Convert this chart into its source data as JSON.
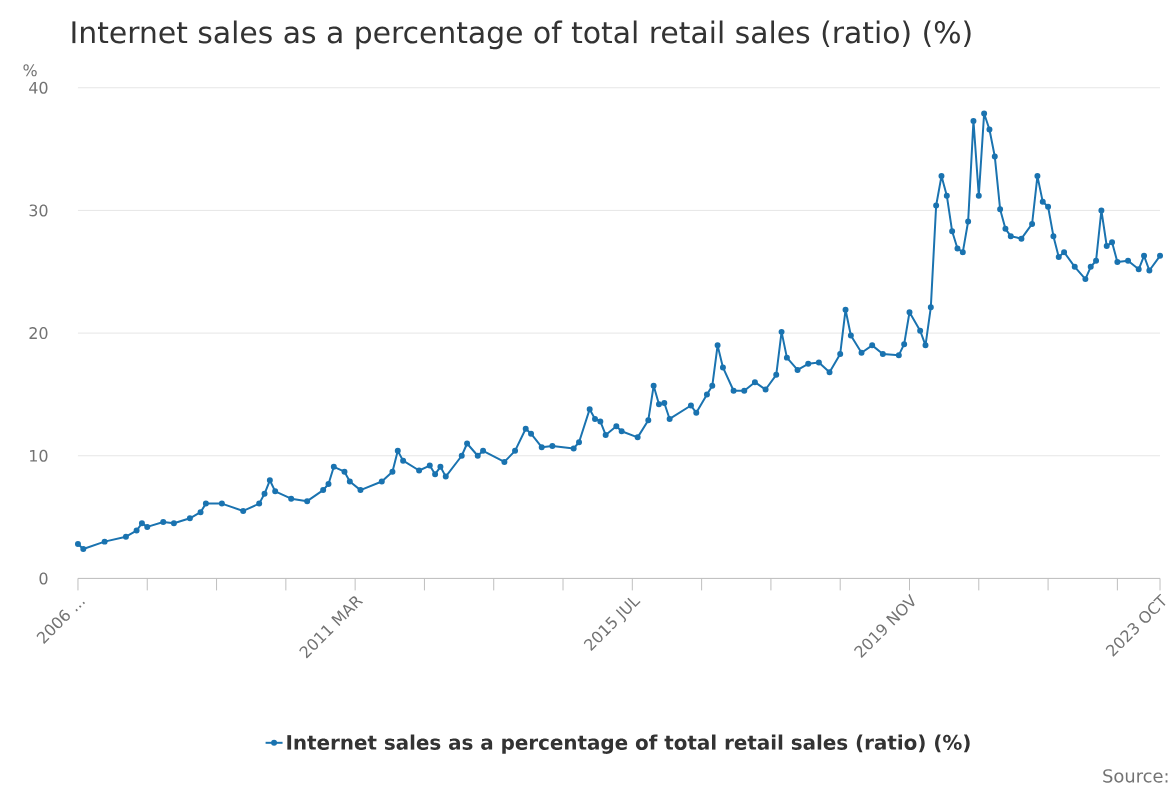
{
  "chart_data": {
    "type": "line",
    "title": "Internet sales as a percentage of total retail sales (ratio) (%)",
    "ylabel": "%",
    "xlim": [
      "2006-11",
      "2023-10"
    ],
    "ylim": [
      0,
      40
    ],
    "yticks": [
      0,
      10,
      20,
      30,
      40
    ],
    "xticks": [
      {
        "value": "2006-11",
        "label": "2006 ..."
      },
      {
        "value": "2007-12",
        "label": null
      },
      {
        "value": "2009-01",
        "label": null
      },
      {
        "value": "2010-02",
        "label": null
      },
      {
        "value": "2011-03",
        "label": "2011 MAR"
      },
      {
        "value": "2012-04",
        "label": null
      },
      {
        "value": "2013-05",
        "label": null
      },
      {
        "value": "2014-06",
        "label": null
      },
      {
        "value": "2015-07",
        "label": "2015 JUL"
      },
      {
        "value": "2016-08",
        "label": null
      },
      {
        "value": "2017-09",
        "label": null
      },
      {
        "value": "2018-10",
        "label": null
      },
      {
        "value": "2019-11",
        "label": "2019 NOV"
      },
      {
        "value": "2020-12",
        "label": null
      },
      {
        "value": "2022-01",
        "label": null
      },
      {
        "value": "2023-02",
        "label": null
      },
      {
        "value": "2023-10",
        "label": "2023 OCT"
      }
    ],
    "grid": "y",
    "legend": "bottom",
    "marker": "circle",
    "line_style": "solid",
    "annotations": [
      "Source:"
    ],
    "x": [
      "2006-11",
      "2006-12",
      "2007-04",
      "2007-08",
      "2007-10",
      "2007-11",
      "2007-12",
      "2008-03",
      "2008-05",
      "2008-08",
      "2008-10",
      "2008-11",
      "2009-02",
      "2009-06",
      "2009-09",
      "2009-10",
      "2009-11",
      "2009-12",
      "2010-03",
      "2010-06",
      "2010-09",
      "2010-10",
      "2010-11",
      "2011-01",
      "2011-02",
      "2011-04",
      "2011-08",
      "2011-10",
      "2011-11",
      "2011-12",
      "2012-03",
      "2012-05",
      "2012-06",
      "2012-07",
      "2012-08",
      "2012-11",
      "2012-12",
      "2013-02",
      "2013-03",
      "2013-07",
      "2013-09",
      "2013-11",
      "2013-12",
      "2014-02",
      "2014-04",
      "2014-08",
      "2014-09",
      "2014-11",
      "2014-12",
      "2015-01",
      "2015-02",
      "2015-04",
      "2015-05",
      "2015-08",
      "2015-10",
      "2015-11",
      "2015-12",
      "2016-01",
      "2016-02",
      "2016-06",
      "2016-07",
      "2016-09",
      "2016-10",
      "2016-11",
      "2016-12",
      "2017-02",
      "2017-04",
      "2017-06",
      "2017-08",
      "2017-10",
      "2017-11",
      "2017-12",
      "2018-02",
      "2018-04",
      "2018-06",
      "2018-08",
      "2018-10",
      "2018-11",
      "2018-12",
      "2019-02",
      "2019-04",
      "2019-06",
      "2019-09",
      "2019-10",
      "2019-11",
      "2020-01",
      "2020-02",
      "2020-03",
      "2020-04",
      "2020-05",
      "2020-06",
      "2020-07",
      "2020-08",
      "2020-09",
      "2020-10",
      "2020-11",
      "2020-12",
      "2021-01",
      "2021-02",
      "2021-03",
      "2021-04",
      "2021-05",
      "2021-06",
      "2021-08",
      "2021-10",
      "2021-11",
      "2021-12",
      "2022-01",
      "2022-02",
      "2022-03",
      "2022-04",
      "2022-06",
      "2022-08",
      "2022-09",
      "2022-10",
      "2022-11",
      "2022-12",
      "2023-01",
      "2023-02",
      "2023-04",
      "2023-06",
      "2023-07",
      "2023-08",
      "2023-10"
    ],
    "series": [
      {
        "name": "Internet sales as a percentage of total retail sales (ratio) (%)",
        "color": "#1a73b0",
        "values": [
          2.8,
          2.4,
          3.0,
          3.4,
          3.9,
          4.5,
          4.2,
          4.6,
          4.5,
          4.9,
          5.4,
          6.1,
          6.1,
          5.5,
          6.1,
          6.9,
          8.0,
          7.1,
          6.5,
          6.3,
          7.2,
          7.7,
          9.1,
          8.7,
          7.9,
          7.2,
          7.9,
          8.7,
          10.4,
          9.6,
          8.8,
          9.2,
          8.5,
          9.1,
          8.3,
          10.0,
          11.0,
          10.0,
          10.4,
          9.5,
          10.4,
          12.2,
          11.8,
          10.7,
          10.8,
          10.6,
          11.1,
          13.8,
          13.0,
          12.8,
          11.7,
          12.4,
          12.0,
          11.5,
          12.9,
          15.7,
          14.2,
          14.3,
          13.0,
          14.1,
          13.5,
          15.0,
          15.7,
          19.0,
          17.2,
          15.3,
          15.3,
          16.0,
          15.4,
          16.6,
          20.1,
          18.0,
          17.0,
          17.5,
          17.6,
          16.8,
          18.3,
          21.9,
          19.8,
          18.4,
          19.0,
          18.3,
          18.2,
          19.1,
          21.7,
          20.2,
          19.0,
          22.1,
          30.4,
          32.8,
          31.2,
          28.3,
          26.9,
          26.6,
          29.1,
          37.3,
          31.2,
          37.9,
          36.6,
          34.4,
          30.1,
          28.5,
          27.9,
          27.7,
          28.9,
          32.8,
          30.7,
          30.3,
          27.9,
          26.2,
          26.6,
          25.4,
          24.4,
          25.4,
          25.9,
          30.0,
          27.1,
          27.4,
          25.8,
          25.9,
          25.2,
          26.3,
          25.1,
          26.3
        ]
      }
    ]
  }
}
